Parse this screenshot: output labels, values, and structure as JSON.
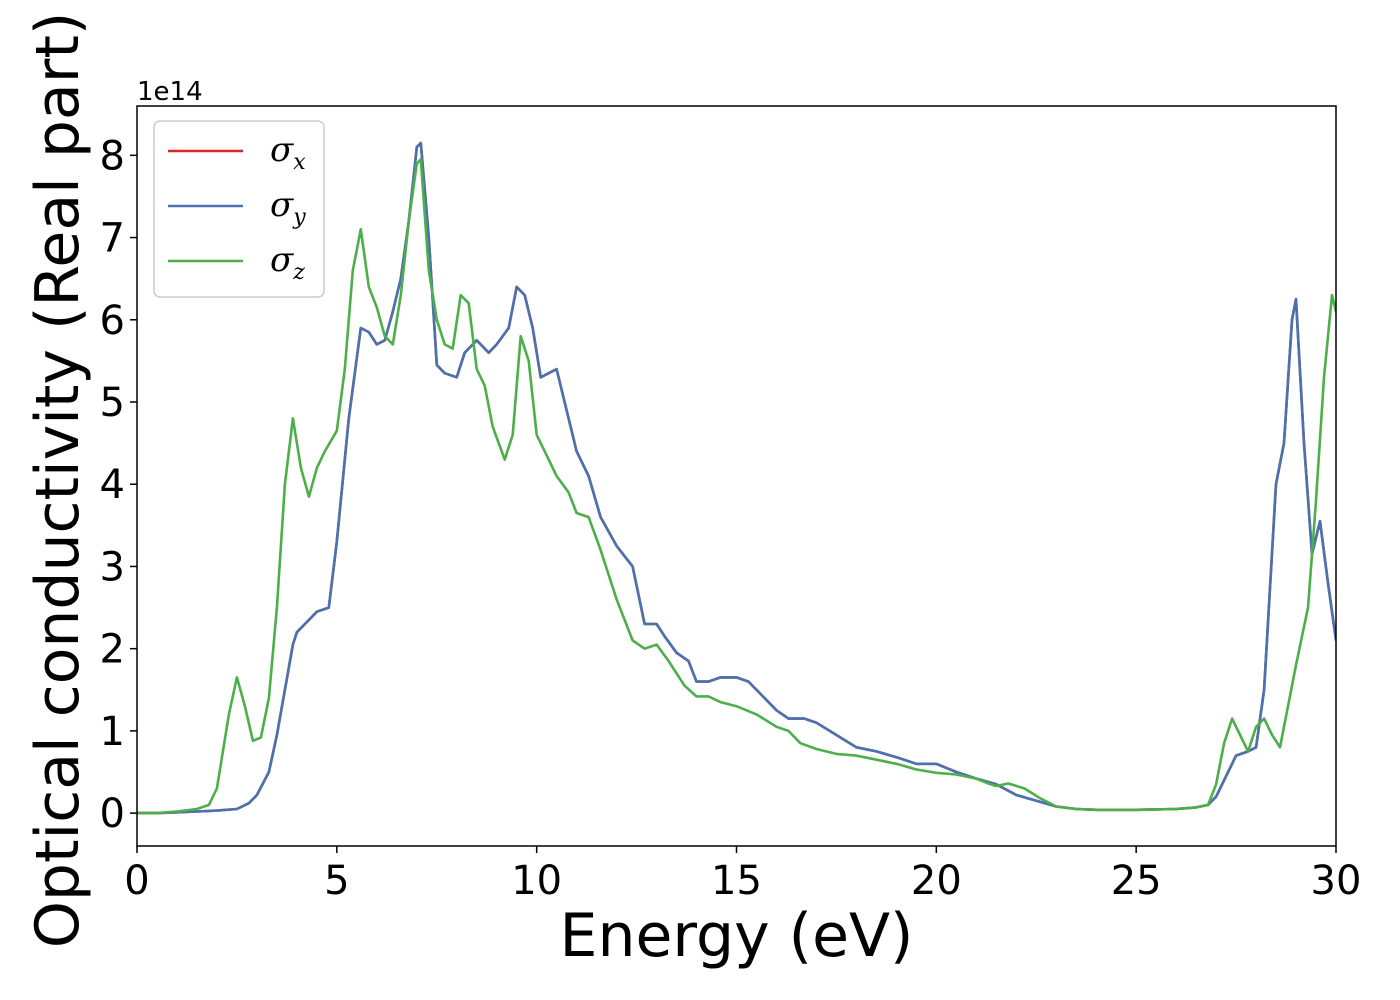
{
  "chart_data": {
    "type": "line",
    "xlabel": "Energy (eV)",
    "ylabel": "Optical conductivity (Real part)",
    "y_offset_label": "1e14",
    "xlim": [
      0,
      30
    ],
    "ylim": [
      -0.4,
      8.6
    ],
    "x_ticks": [
      0,
      5,
      10,
      15,
      20,
      25,
      30
    ],
    "y_ticks": [
      0,
      1,
      2,
      3,
      4,
      5,
      6,
      7,
      8
    ],
    "grid": false,
    "legend_position": "top-left",
    "series": [
      {
        "name": "σx",
        "symbol": "σ",
        "subscript": "x",
        "color": "#d62728",
        "x": [
          0,
          0.5,
          1.0,
          1.5,
          2.0,
          2.5,
          2.8,
          3.0,
          3.3,
          3.5,
          3.7,
          3.9,
          4.0,
          4.2,
          4.5,
          4.8,
          5.0,
          5.3,
          5.6,
          5.8,
          6.0,
          6.2,
          6.4,
          6.6,
          6.8,
          7.0,
          7.1,
          7.3,
          7.5,
          7.7,
          8.0,
          8.2,
          8.5,
          8.8,
          9.0,
          9.3,
          9.5,
          9.7,
          9.9,
          10.1,
          10.3,
          10.5,
          10.7,
          11.0,
          11.3,
          11.6,
          12.0,
          12.4,
          12.7,
          13.0,
          13.2,
          13.5,
          13.8,
          14.0,
          14.3,
          14.6,
          15.0,
          15.3,
          15.6,
          16.0,
          16.3,
          16.7,
          17.0,
          17.5,
          18.0,
          18.5,
          19.0,
          19.5,
          20.0,
          20.5,
          21.0,
          21.5,
          22.0,
          22.5,
          23.0,
          23.5,
          24.0,
          25.0,
          26.0,
          26.5,
          26.8,
          27.0,
          27.3,
          27.5,
          27.8,
          28.0,
          28.2,
          28.5,
          28.7,
          28.9,
          29.0,
          29.2,
          29.4,
          29.6,
          29.8,
          30.0
        ],
        "values": [
          0,
          0,
          0.01,
          0.02,
          0.03,
          0.05,
          0.12,
          0.22,
          0.5,
          0.95,
          1.5,
          2.05,
          2.2,
          2.3,
          2.45,
          2.5,
          3.3,
          4.8,
          5.9,
          5.85,
          5.7,
          5.75,
          6.1,
          6.5,
          7.2,
          8.1,
          8.15,
          7.0,
          5.45,
          5.35,
          5.3,
          5.6,
          5.75,
          5.6,
          5.7,
          5.9,
          6.4,
          6.3,
          5.9,
          5.3,
          5.35,
          5.4,
          5.0,
          4.4,
          4.1,
          3.6,
          3.25,
          3.0,
          2.3,
          2.3,
          2.15,
          1.95,
          1.85,
          1.6,
          1.6,
          1.65,
          1.65,
          1.6,
          1.45,
          1.25,
          1.15,
          1.15,
          1.1,
          0.95,
          0.8,
          0.75,
          0.68,
          0.6,
          0.6,
          0.5,
          0.42,
          0.35,
          0.22,
          0.15,
          0.08,
          0.05,
          0.04,
          0.04,
          0.05,
          0.07,
          0.1,
          0.2,
          0.5,
          0.7,
          0.75,
          0.8,
          1.5,
          4.0,
          4.5,
          6.0,
          6.25,
          4.5,
          3.15,
          3.55,
          2.8,
          2.1
        ]
      },
      {
        "name": "σy",
        "symbol": "σ",
        "subscript": "y",
        "color": "#4a72b0",
        "x": [
          0,
          0.5,
          1.0,
          1.5,
          2.0,
          2.5,
          2.8,
          3.0,
          3.3,
          3.5,
          3.7,
          3.9,
          4.0,
          4.2,
          4.5,
          4.8,
          5.0,
          5.3,
          5.6,
          5.8,
          6.0,
          6.2,
          6.4,
          6.6,
          6.8,
          7.0,
          7.1,
          7.3,
          7.5,
          7.7,
          8.0,
          8.2,
          8.5,
          8.8,
          9.0,
          9.3,
          9.5,
          9.7,
          9.9,
          10.1,
          10.3,
          10.5,
          10.7,
          11.0,
          11.3,
          11.6,
          12.0,
          12.4,
          12.7,
          13.0,
          13.2,
          13.5,
          13.8,
          14.0,
          14.3,
          14.6,
          15.0,
          15.3,
          15.6,
          16.0,
          16.3,
          16.7,
          17.0,
          17.5,
          18.0,
          18.5,
          19.0,
          19.5,
          20.0,
          20.5,
          21.0,
          21.5,
          22.0,
          22.5,
          23.0,
          23.5,
          24.0,
          25.0,
          26.0,
          26.5,
          26.8,
          27.0,
          27.3,
          27.5,
          27.8,
          28.0,
          28.2,
          28.5,
          28.7,
          28.9,
          29.0,
          29.2,
          29.4,
          29.6,
          29.8,
          30.0
        ],
        "values": [
          0,
          0,
          0.01,
          0.02,
          0.03,
          0.05,
          0.12,
          0.22,
          0.5,
          0.95,
          1.5,
          2.05,
          2.2,
          2.3,
          2.45,
          2.5,
          3.3,
          4.8,
          5.9,
          5.85,
          5.7,
          5.75,
          6.1,
          6.5,
          7.2,
          8.1,
          8.15,
          7.0,
          5.45,
          5.35,
          5.3,
          5.6,
          5.75,
          5.6,
          5.7,
          5.9,
          6.4,
          6.3,
          5.9,
          5.3,
          5.35,
          5.4,
          5.0,
          4.4,
          4.1,
          3.6,
          3.25,
          3.0,
          2.3,
          2.3,
          2.15,
          1.95,
          1.85,
          1.6,
          1.6,
          1.65,
          1.65,
          1.6,
          1.45,
          1.25,
          1.15,
          1.15,
          1.1,
          0.95,
          0.8,
          0.75,
          0.68,
          0.6,
          0.6,
          0.5,
          0.42,
          0.35,
          0.22,
          0.15,
          0.08,
          0.05,
          0.04,
          0.04,
          0.05,
          0.07,
          0.1,
          0.2,
          0.5,
          0.7,
          0.75,
          0.8,
          1.5,
          4.0,
          4.5,
          6.0,
          6.25,
          4.5,
          3.15,
          3.55,
          2.8,
          2.1
        ]
      },
      {
        "name": "σz",
        "symbol": "σ",
        "subscript": "z",
        "color": "#4daf4a",
        "x": [
          0,
          0.5,
          1.0,
          1.5,
          1.8,
          2.0,
          2.3,
          2.5,
          2.7,
          2.9,
          3.1,
          3.3,
          3.5,
          3.7,
          3.9,
          4.1,
          4.3,
          4.5,
          4.7,
          5.0,
          5.2,
          5.4,
          5.6,
          5.8,
          6.0,
          6.2,
          6.4,
          6.6,
          6.8,
          7.0,
          7.1,
          7.3,
          7.5,
          7.7,
          7.9,
          8.1,
          8.3,
          8.5,
          8.7,
          8.9,
          9.2,
          9.4,
          9.6,
          9.8,
          10.0,
          10.2,
          10.5,
          10.8,
          11.0,
          11.3,
          11.6,
          12.0,
          12.4,
          12.7,
          13.0,
          13.3,
          13.7,
          14.0,
          14.3,
          14.6,
          15.0,
          15.5,
          16.0,
          16.3,
          16.6,
          17.0,
          17.5,
          18.0,
          18.5,
          19.0,
          19.5,
          20.0,
          20.5,
          21.0,
          21.3,
          21.5,
          21.8,
          22.2,
          22.6,
          23.0,
          23.5,
          24.0,
          25.0,
          26.0,
          26.5,
          26.8,
          27.0,
          27.2,
          27.4,
          27.6,
          27.8,
          28.0,
          28.2,
          28.4,
          28.6,
          28.8,
          29.0,
          29.3,
          29.5,
          29.7,
          29.9,
          30.0
        ],
        "values": [
          0,
          0,
          0.02,
          0.05,
          0.1,
          0.3,
          1.2,
          1.65,
          1.3,
          0.88,
          0.92,
          1.4,
          2.5,
          4.0,
          4.8,
          4.2,
          3.85,
          4.2,
          4.4,
          4.65,
          5.4,
          6.6,
          7.1,
          6.4,
          6.15,
          5.8,
          5.7,
          6.3,
          7.2,
          7.9,
          7.95,
          6.6,
          6.0,
          5.7,
          5.65,
          6.3,
          6.2,
          5.4,
          5.2,
          4.7,
          4.3,
          4.6,
          5.8,
          5.5,
          4.6,
          4.4,
          4.1,
          3.9,
          3.65,
          3.6,
          3.2,
          2.6,
          2.1,
          2.0,
          2.05,
          1.85,
          1.55,
          1.42,
          1.42,
          1.35,
          1.3,
          1.2,
          1.05,
          1.0,
          0.85,
          0.78,
          0.72,
          0.7,
          0.65,
          0.6,
          0.53,
          0.49,
          0.47,
          0.42,
          0.36,
          0.33,
          0.36,
          0.3,
          0.18,
          0.08,
          0.05,
          0.04,
          0.04,
          0.05,
          0.07,
          0.1,
          0.35,
          0.85,
          1.15,
          0.95,
          0.75,
          1.05,
          1.15,
          0.95,
          0.8,
          1.3,
          1.8,
          2.5,
          3.8,
          5.3,
          6.3,
          6.1
        ]
      }
    ]
  }
}
